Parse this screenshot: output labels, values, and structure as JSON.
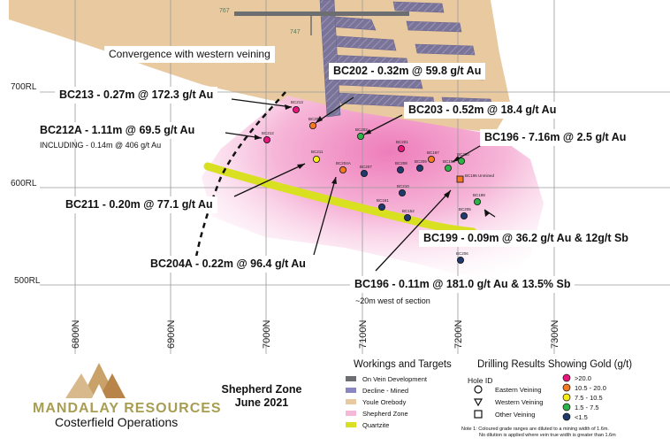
{
  "rl_labels": [
    "700RL",
    "600RL",
    "500RL"
  ],
  "easting_labels": [
    "6800N",
    "6900N",
    "7000N",
    "7100N",
    "7200N",
    "7300N"
  ],
  "level_labels": [
    "767",
    "747"
  ],
  "callouts": {
    "convergence": "Convergence with western veining",
    "bc202": "BC202 - 0.32m @ 59.8 g/t Au",
    "bc213": "BC213 - 0.27m @ 172.3 g/t Au",
    "bc203": "BC203 - 0.52m @ 18.4 g/t Au",
    "bc212a": "BC212A - 1.11m @ 69.5 g/t Au",
    "bc212a_sub": "INCLUDING - 0.14m @ 406 g/t Au",
    "bc196a": "BC196 - 7.16m @ 2.5 g/t Au",
    "bc211": "BC211 - 0.20m @ 77.1 g/t Au",
    "bc199": "BC199 - 0.09m @ 36.2 g/t Au & 12g/t Sb",
    "bc204a": "BC204A - 0.22m @ 96.4 g/t Au",
    "bc196b": "BC196 - 0.11m @ 181.0 g/t Au & 13.5% Sb",
    "bc196b_sub": "~20m west of section"
  },
  "holes": [
    {
      "id": "BC213",
      "grade_color": "#e8157a"
    },
    {
      "id": "BC202",
      "grade_color": "#f47920"
    },
    {
      "id": "BC212",
      "grade_color": "#e8157a"
    },
    {
      "id": "BC203",
      "grade_color": "#2db34a"
    },
    {
      "id": "BC211",
      "grade_color": "#f7ec13"
    },
    {
      "id": "BC204A",
      "grade_color": "#f47920"
    },
    {
      "id": "BC207",
      "grade_color": "#1f3b6e"
    },
    {
      "id": "BC201",
      "grade_color": "#e8157a"
    },
    {
      "id": "BC208",
      "grade_color": "#1f3b6e"
    },
    {
      "id": "BC197",
      "grade_color": "#f47920"
    },
    {
      "id": "BC209",
      "grade_color": "#1f3b6e"
    },
    {
      "id": "BC198",
      "grade_color": "#2db34a"
    },
    {
      "id": "BC200",
      "grade_color": "#2db34a"
    },
    {
      "id": "BC196 Unmined",
      "grade_color": "#f47920"
    },
    {
      "id": "BC210",
      "grade_color": "#1f3b6e"
    },
    {
      "id": "BC161",
      "grade_color": "#1f3b6e"
    },
    {
      "id": "BC152",
      "grade_color": "#1f3b6e"
    },
    {
      "id": "BC199",
      "grade_color": "#2db34a"
    },
    {
      "id": "BC205",
      "grade_color": "#1f3b6e"
    },
    {
      "id": "BC206",
      "grade_color": "#1f3b6e"
    }
  ],
  "logo": {
    "name": "MANDALAY RESOURCES",
    "sub": "Costerfield Operations"
  },
  "title": {
    "line1": "Shepherd Zone",
    "line2": "June 2021"
  },
  "workings": {
    "heading": "Workings and Targets",
    "items": [
      {
        "label": "On Vein Development",
        "color": "#6d6e71"
      },
      {
        "label": "Decline - Mined",
        "color": "#8a86c0"
      },
      {
        "label": "Youle Orebody",
        "color": "#e8c9a0"
      },
      {
        "label": "Shepherd Zone",
        "color": "#f4b9d6"
      },
      {
        "label": "Quartzite",
        "color": "#d9e021"
      }
    ]
  },
  "drilling": {
    "heading": "Drilling Results Showing Gold (g/t)",
    "hole_id": "Hole ID",
    "types": [
      "Eastern Veining",
      "Western Veining",
      "Other Veining"
    ],
    "ranges": [
      {
        "label": ">20.0",
        "color": "#e8157a"
      },
      {
        "label": "10.5 - 20.0",
        "color": "#f47920"
      },
      {
        "label": "7.5 - 10.5",
        "color": "#f7ec13"
      },
      {
        "label": "1.5 - 7.5",
        "color": "#2db34a"
      },
      {
        "label": "<1.5",
        "color": "#1f3b6e"
      }
    ],
    "note1": "Note 1:  Coloured grade ranges are diluted to a mining width of 1.6m.",
    "note2": "No dilution is applied where vein true width is greater than 1.6m"
  }
}
